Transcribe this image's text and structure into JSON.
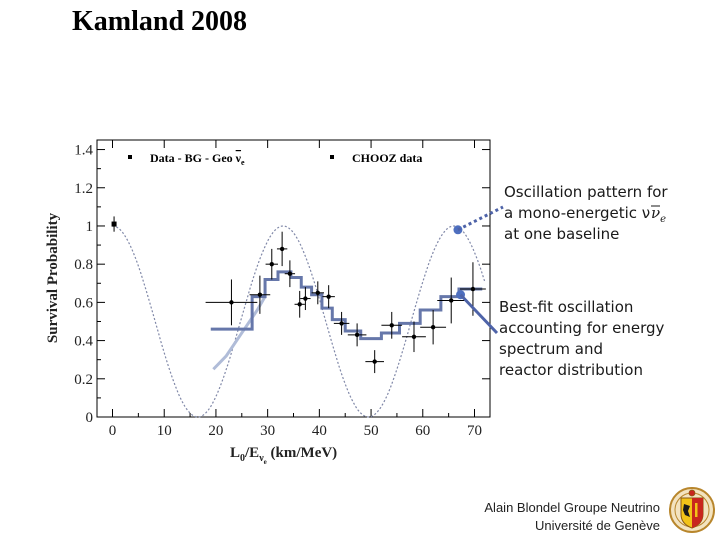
{
  "slide": {
    "title": "Kamland 2008"
  },
  "chart_data": {
    "type": "scatter",
    "title": "",
    "xlabel": "L₀/E (km/MeV)",
    "xlabel_main": "L",
    "xlabel_sub0": "0",
    "xlabel_mid": "/E",
    "xlabel_sub_nu": "ν",
    "xlabel_sub_e": "e",
    "xlabel_unit": " (km/MeV)",
    "ylabel": "Survival Probability",
    "xlim": [
      -3,
      73
    ],
    "ylim": [
      0,
      1.45
    ],
    "x_ticks": [
      0,
      10,
      20,
      30,
      40,
      50,
      60,
      70
    ],
    "y_ticks": [
      0,
      0.2,
      0.4,
      0.6,
      0.8,
      1,
      1.2,
      1.4
    ],
    "y_tick_labels": [
      "0",
      "0.2",
      "0.4",
      "0.6",
      "0.8",
      "1",
      "1.2",
      "1.4"
    ],
    "legend": {
      "data_label": "Data - BG - Geo ",
      "data_nu": "ν",
      "data_sub": "e",
      "chooz_label": "CHOOZ data"
    },
    "series": [
      {
        "name": "Data - BG - Geo νe",
        "points": [
          {
            "x": 23.0,
            "y": 0.6,
            "xerr": 5.0,
            "yerr": 0.12
          },
          {
            "x": 28.5,
            "y": 0.64,
            "xerr": 2.0,
            "yerr": 0.1
          },
          {
            "x": 30.8,
            "y": 0.8,
            "xerr": 1.2,
            "yerr": 0.08
          },
          {
            "x": 32.8,
            "y": 0.88,
            "xerr": 1.0,
            "yerr": 0.09
          },
          {
            "x": 34.3,
            "y": 0.75,
            "xerr": 1.0,
            "yerr": 0.07
          },
          {
            "x": 36.2,
            "y": 0.59,
            "xerr": 1.0,
            "yerr": 0.07
          },
          {
            "x": 37.3,
            "y": 0.62,
            "xerr": 1.0,
            "yerr": 0.06
          },
          {
            "x": 39.7,
            "y": 0.65,
            "xerr": 1.2,
            "yerr": 0.06
          },
          {
            "x": 41.8,
            "y": 0.63,
            "xerr": 1.2,
            "yerr": 0.06
          },
          {
            "x": 44.3,
            "y": 0.49,
            "xerr": 1.5,
            "yerr": 0.06
          },
          {
            "x": 47.3,
            "y": 0.43,
            "xerr": 1.8,
            "yerr": 0.06
          },
          {
            "x": 50.7,
            "y": 0.29,
            "xerr": 1.8,
            "yerr": 0.06
          },
          {
            "x": 54.0,
            "y": 0.48,
            "xerr": 2.0,
            "yerr": 0.07
          },
          {
            "x": 58.3,
            "y": 0.42,
            "xerr": 2.3,
            "yerr": 0.08
          },
          {
            "x": 62.0,
            "y": 0.47,
            "xerr": 2.5,
            "yerr": 0.09
          },
          {
            "x": 65.5,
            "y": 0.61,
            "xerr": 2.7,
            "yerr": 0.12
          },
          {
            "x": 69.7,
            "y": 0.67,
            "xerr": 2.5,
            "yerr": 0.14
          }
        ]
      },
      {
        "name": "CHOOZ data",
        "points": [
          {
            "x": 0.3,
            "y": 1.01,
            "yerr": 0.04
          }
        ]
      },
      {
        "name": "Best-fit oscillation (step)",
        "steps": [
          {
            "x0": 19.0,
            "x1": 27.0,
            "y": 0.46
          },
          {
            "x0": 27.0,
            "x1": 29.5,
            "y": 0.63
          },
          {
            "x0": 29.5,
            "x1": 32.0,
            "y": 0.72
          },
          {
            "x0": 32.0,
            "x1": 34.5,
            "y": 0.76
          },
          {
            "x0": 34.5,
            "x1": 36.5,
            "y": 0.73
          },
          {
            "x0": 36.5,
            "x1": 38.5,
            "y": 0.68
          },
          {
            "x0": 38.5,
            "x1": 40.5,
            "y": 0.64
          },
          {
            "x0": 40.5,
            "x1": 42.5,
            "y": 0.57
          },
          {
            "x0": 42.5,
            "x1": 45.0,
            "y": 0.51
          },
          {
            "x0": 45.0,
            "x1": 48.0,
            "y": 0.45
          },
          {
            "x0": 48.0,
            "x1": 52.0,
            "y": 0.41
          },
          {
            "x0": 52.0,
            "x1": 55.5,
            "y": 0.44
          },
          {
            "x0": 55.5,
            "x1": 59.5,
            "y": 0.49
          },
          {
            "x0": 59.5,
            "x1": 63.5,
            "y": 0.56
          },
          {
            "x0": 63.5,
            "x1": 67.0,
            "y": 0.63
          },
          {
            "x0": 67.0,
            "x1": 71.5,
            "y": 0.67
          }
        ]
      },
      {
        "name": "Best-fit oscillation (smooth)",
        "points": [
          {
            "x": 19.5,
            "y": 0.25
          },
          {
            "x": 22.0,
            "y": 0.32
          },
          {
            "x": 25.0,
            "y": 0.44
          },
          {
            "x": 28.0,
            "y": 0.56
          },
          {
            "x": 29.5,
            "y": 0.63
          }
        ]
      },
      {
        "name": "Mono-energetic oscillation",
        "formula": "1 - sin^2(2θ) sin^2(π L/E / 33)",
        "period_km_per_mev": 33,
        "x_range": [
          0,
          72
        ]
      }
    ],
    "annotations": [
      {
        "text_lines": [
          "Oscillation pattern for",
          "a mono-energetic νe",
          "at one baseline"
        ],
        "text": "Oscillation pattern for\na mono-energetic ν\nat one baseline",
        "nu_glyph": "ν",
        "nu_sub": "e",
        "marker_at": {
          "x": 66.8,
          "y": 0.98
        },
        "arrow_style": "dotted"
      },
      {
        "text": "Best-fit oscillation\naccounting for energy\nspectrum and\nreactor distribution",
        "marker_at": {
          "x": 67.3,
          "y": 0.64
        },
        "arrow_style": "solid"
      }
    ]
  },
  "footer": {
    "line1": "Alain Blondel Groupe Neutrino",
    "line2": "Université de Genève"
  },
  "colors": {
    "fit_line": "#6677aa",
    "fit_line_light": "#b0bcd8",
    "dotted_curve": "#8088a8",
    "marker": "#4e6fbf",
    "callout_arrow": "#4e63a8",
    "frame": "#000000"
  }
}
